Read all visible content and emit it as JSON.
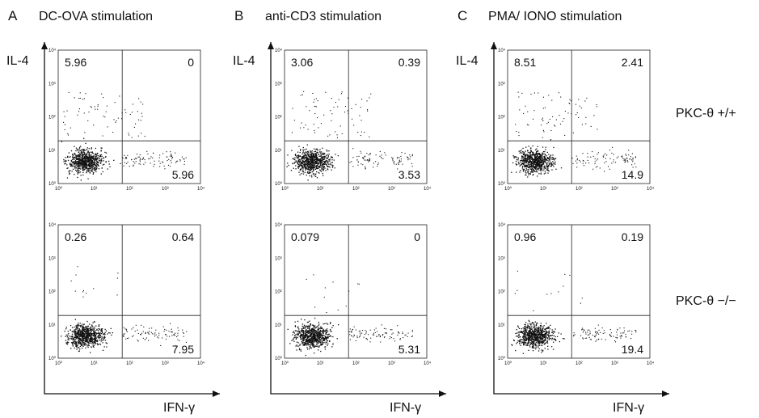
{
  "panels": [
    {
      "letter": "A",
      "title": "DC-OVA stimulation",
      "y_label": "IL-4",
      "x_label": "IFN-γ",
      "plots": [
        {
          "genotype": "PKC-θ +/+",
          "quadrants": {
            "ul": "5.96",
            "ur": "0",
            "lr": "5.96"
          }
        },
        {
          "genotype": "PKC-θ −/−",
          "quadrants": {
            "ul": "0.26",
            "ur": "0.64",
            "lr": "7.95"
          }
        }
      ]
    },
    {
      "letter": "B",
      "title": "anti-CD3 stimulation",
      "y_label": "IL-4",
      "x_label": "IFN-γ",
      "plots": [
        {
          "genotype": "PKC-θ +/+",
          "quadrants": {
            "ul": "3.06",
            "ur": "0.39",
            "lr": "3.53"
          }
        },
        {
          "genotype": "PKC-θ −/−",
          "quadrants": {
            "ul": "0.079",
            "ur": "0",
            "lr": "5.31"
          }
        }
      ]
    },
    {
      "letter": "C",
      "title": "PMA/ IONO stimulation",
      "y_label": "IL-4",
      "x_label": "IFN-γ",
      "plots": [
        {
          "genotype": "PKC-θ +/+",
          "quadrants": {
            "ul": "8.51",
            "ur": "2.41",
            "lr": "14.9"
          }
        },
        {
          "genotype": "PKC-θ −/−",
          "quadrants": {
            "ul": "0.96",
            "ur": "0.19",
            "lr": "19.4"
          }
        }
      ]
    }
  ],
  "row_labels": [
    "PKC-θ +/+",
    "PKC-θ −/−"
  ],
  "x_tick_labels": [
    "10⁰",
    "10¹",
    "10²",
    "10³",
    "10⁴"
  ],
  "y_tick_labels": [
    "10⁰",
    "10¹",
    "10²",
    "10³",
    "10⁴"
  ],
  "dot_color": "#111111"
}
